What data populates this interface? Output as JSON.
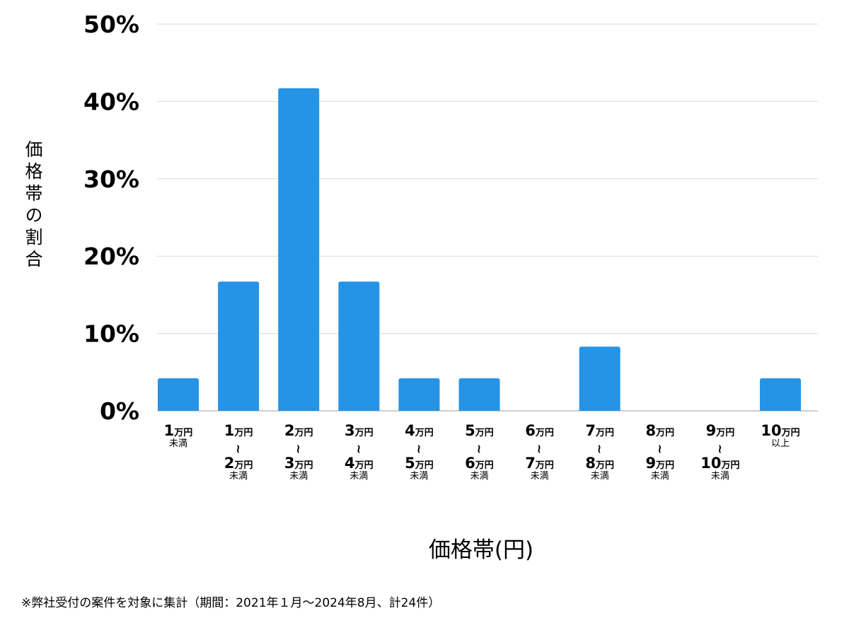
{
  "chart_data": {
    "type": "bar",
    "title": "",
    "xlabel": "価格帯(円)",
    "ylabel": "価格帯の割合",
    "ylim": [
      0,
      50
    ],
    "yticks": [
      "0%",
      "10%",
      "20%",
      "30%",
      "40%",
      "50%"
    ],
    "grid": true,
    "bar_color": "#2594e6",
    "categories": [
      {
        "lines": [
          [
            "1",
            "万円"
          ],
          [
            "",
            "未満"
          ]
        ]
      },
      {
        "lines": [
          [
            "1",
            "万円"
          ],
          [
            "~",
            ""
          ],
          [
            "2",
            "万円"
          ],
          [
            "",
            "未満"
          ]
        ]
      },
      {
        "lines": [
          [
            "2",
            "万円"
          ],
          [
            "~",
            ""
          ],
          [
            "3",
            "万円"
          ],
          [
            "",
            "未満"
          ]
        ]
      },
      {
        "lines": [
          [
            "3",
            "万円"
          ],
          [
            "~",
            ""
          ],
          [
            "4",
            "万円"
          ],
          [
            "",
            "未満"
          ]
        ]
      },
      {
        "lines": [
          [
            "4",
            "万円"
          ],
          [
            "~",
            ""
          ],
          [
            "5",
            "万円"
          ],
          [
            "",
            "未満"
          ]
        ]
      },
      {
        "lines": [
          [
            "5",
            "万円"
          ],
          [
            "~",
            ""
          ],
          [
            "6",
            "万円"
          ],
          [
            "",
            "未満"
          ]
        ]
      },
      {
        "lines": [
          [
            "6",
            "万円"
          ],
          [
            "~",
            ""
          ],
          [
            "7",
            "万円"
          ],
          [
            "",
            "未満"
          ]
        ]
      },
      {
        "lines": [
          [
            "7",
            "万円"
          ],
          [
            "~",
            ""
          ],
          [
            "8",
            "万円"
          ],
          [
            "",
            "未満"
          ]
        ]
      },
      {
        "lines": [
          [
            "8",
            "万円"
          ],
          [
            "~",
            ""
          ],
          [
            "9",
            "万円"
          ],
          [
            "",
            "未満"
          ]
        ]
      },
      {
        "lines": [
          [
            "9",
            "万円"
          ],
          [
            "~",
            ""
          ],
          [
            "10",
            "万円"
          ],
          [
            "",
            "未満"
          ]
        ]
      },
      {
        "lines": [
          [
            "10",
            "万円"
          ],
          [
            "",
            "以上"
          ]
        ]
      }
    ],
    "values": [
      4.2,
      16.7,
      41.7,
      16.7,
      4.2,
      4.2,
      0,
      8.3,
      0,
      0,
      4.2
    ]
  },
  "footnote": "※弊社受付の案件を対象に集計（期間：2021年１月～2024年8月、計24件）"
}
